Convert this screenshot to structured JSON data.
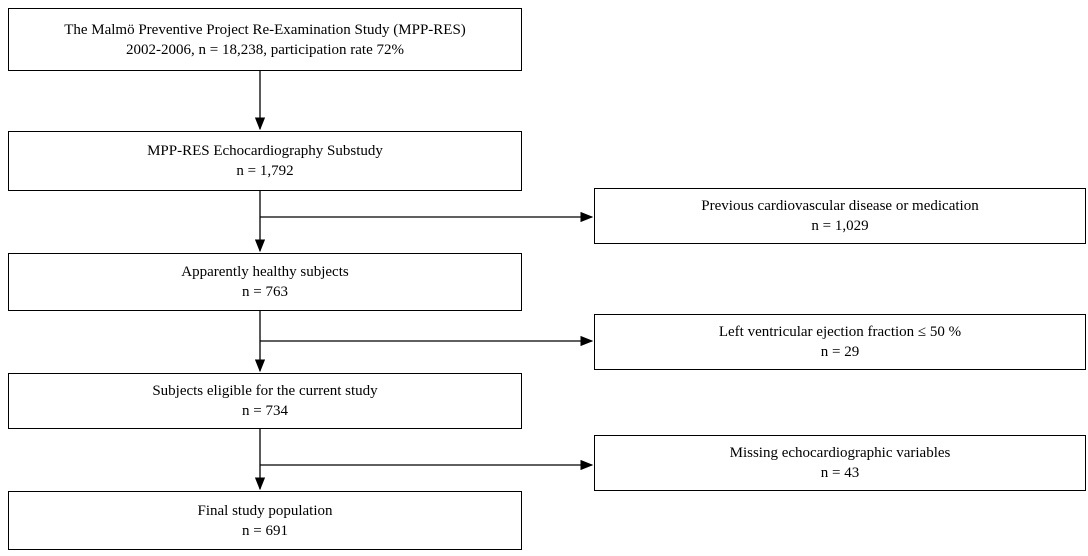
{
  "nodes": [
    {
      "lines": [
        "The Malmö Preventive Project Re-Examination Study (MPP-RES)",
        "2002-2006, n = 18,238, participation rate 72%"
      ]
    },
    {
      "lines": [
        "MPP-RES Echocardiography Substudy",
        "n = 1,792"
      ]
    },
    {
      "lines": [
        "Apparently healthy subjects",
        "n = 763"
      ]
    },
    {
      "lines": [
        "Subjects eligible for the current study",
        "n = 734"
      ]
    },
    {
      "lines": [
        "Final study population",
        "n = 691"
      ]
    }
  ],
  "exclusions": [
    {
      "lines": [
        "Previous cardiovascular disease or medication",
        "n = 1,029"
      ]
    },
    {
      "lines": [
        "Left ventricular ejection fraction ≤ 50 %",
        "n = 29"
      ]
    },
    {
      "lines": [
        "Missing echocardiographic variables",
        "n = 43"
      ]
    }
  ]
}
